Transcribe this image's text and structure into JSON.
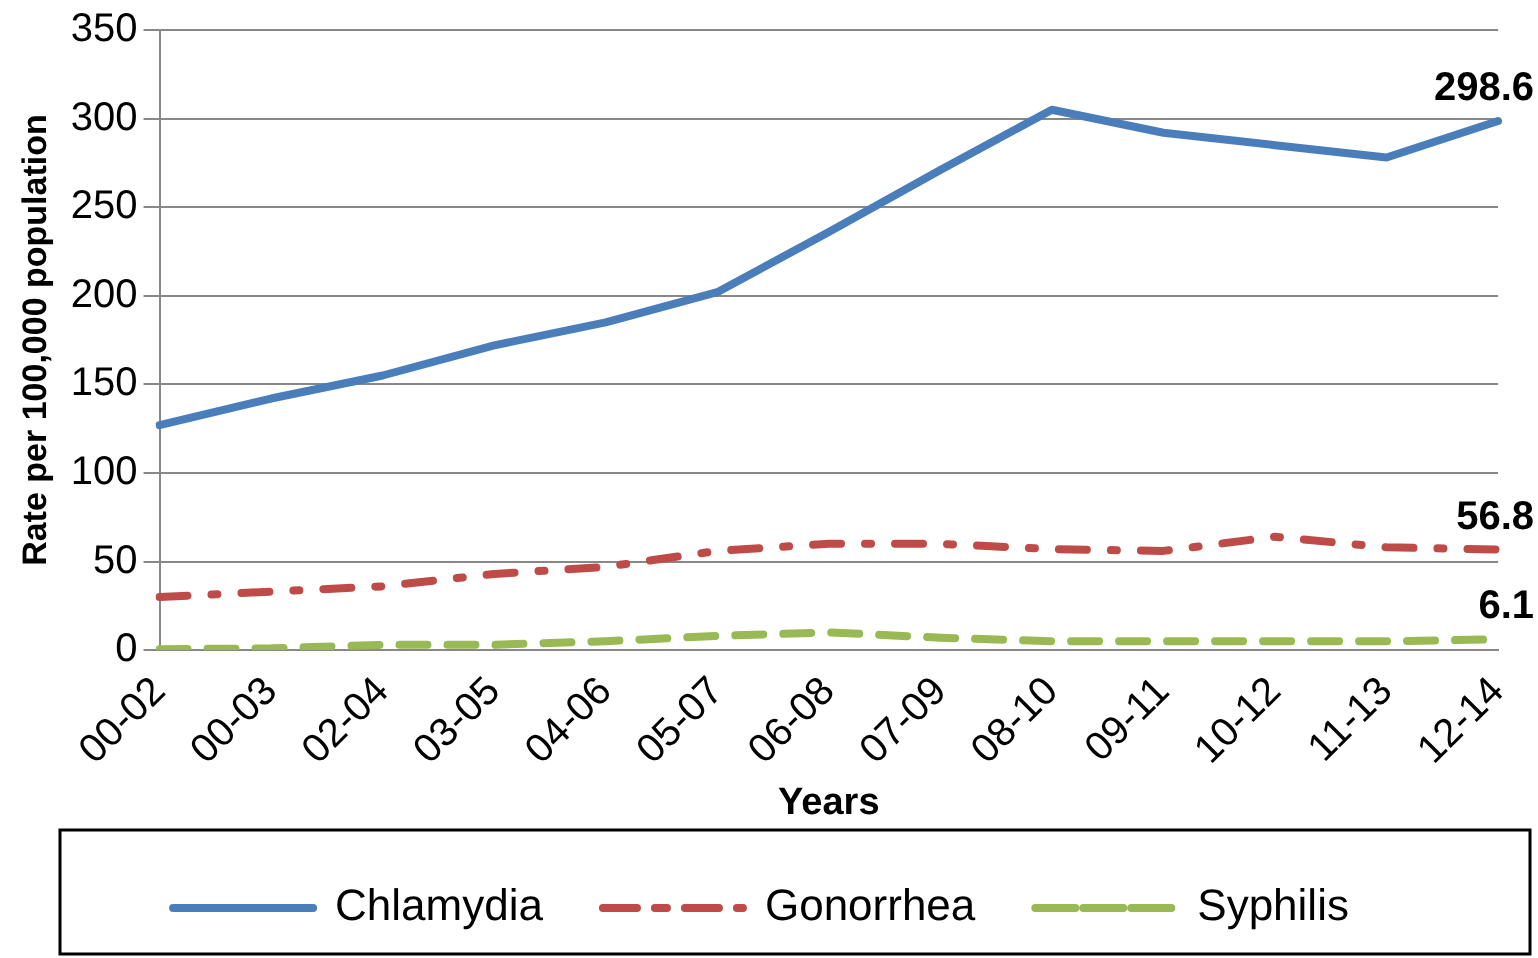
{
  "chart_data": {
    "type": "line",
    "xlabel": "Years",
    "ylabel": "Rate per 100,000 population",
    "categories": [
      "00-02",
      "00-03",
      "02-04",
      "03-05",
      "04-06",
      "05-07",
      "06-08",
      "07-09",
      "08-10",
      "09-11",
      "10-12",
      "11-13",
      "12-14"
    ],
    "series": [
      {
        "name": "Chlamydia",
        "color": "#4a7ebb",
        "line_style": "solid",
        "values": [
          127,
          142,
          155,
          172,
          185,
          202,
          236,
          271,
          305,
          292,
          285,
          278,
          298.6
        ],
        "value_labels": [
          null,
          null,
          null,
          null,
          null,
          null,
          null,
          null,
          null,
          null,
          null,
          null,
          "298.6"
        ]
      },
      {
        "name": "Gonorrhea",
        "color": "#be4b48",
        "line_style": "dashed",
        "values": [
          30,
          33,
          36,
          43,
          47,
          56,
          60,
          60,
          57,
          56,
          64,
          58,
          56.8
        ],
        "value_labels": [
          null,
          null,
          null,
          null,
          null,
          null,
          null,
          null,
          null,
          null,
          null,
          null,
          "56.8"
        ]
      },
      {
        "name": "Syphilis",
        "color": "#98b954",
        "line_style": "dashed",
        "values": [
          0.5,
          1,
          3,
          3,
          5,
          8,
          10,
          7,
          5,
          5,
          5,
          5,
          6.1
        ],
        "value_labels": [
          null,
          null,
          null,
          null,
          null,
          null,
          null,
          null,
          null,
          null,
          null,
          null,
          "6.1"
        ]
      }
    ],
    "ylim": [
      0,
      350
    ],
    "yticks": [
      0,
      50,
      100,
      150,
      200,
      250,
      300,
      350
    ],
    "grid": "y",
    "legend": "bottom",
    "marker": "none"
  }
}
